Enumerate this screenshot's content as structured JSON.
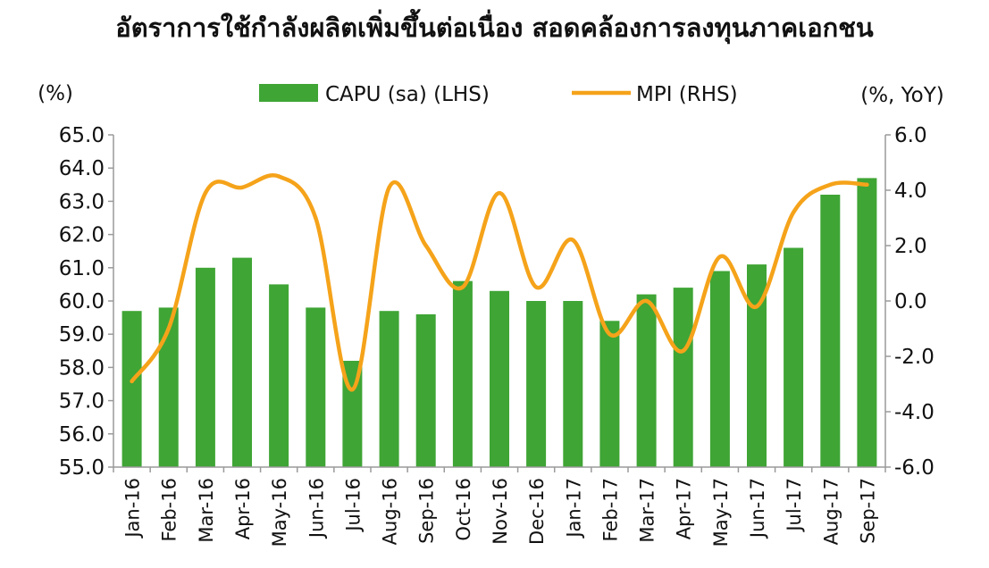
{
  "chart_data": {
    "type": "bar",
    "title": "อัตราการใช้กำลังผลิตเพิ่มขึ้นต่อเนื่อง สอดคล้องการลงทุนภาคเอกชน",
    "left_unit": "(%)",
    "right_unit": "(%, YoY)",
    "categories": [
      "Jan-16",
      "Feb-16",
      "Mar-16",
      "Apr-16",
      "May-16",
      "Jun-16",
      "Jul-16",
      "Aug-16",
      "Sep-16",
      "Oct-16",
      "Nov-16",
      "Dec-16",
      "Jan-17",
      "Feb-17",
      "Mar-17",
      "Apr-17",
      "May-17",
      "Jun-17",
      "Jul-17",
      "Aug-17",
      "Sep-17"
    ],
    "left_axis": {
      "min": 55.0,
      "max": 65.0,
      "ticks": [
        "55.0",
        "56.0",
        "57.0",
        "58.0",
        "59.0",
        "60.0",
        "61.0",
        "62.0",
        "63.0",
        "64.0",
        "65.0"
      ]
    },
    "right_axis": {
      "min": -6.0,
      "max": 6.0,
      "ticks": [
        "-6.0",
        "-4.0",
        "-2.0",
        "0.0",
        "2.0",
        "4.0",
        "6.0"
      ]
    },
    "legend_position": "top",
    "series": [
      {
        "name": "CAPU (sa) (LHS)",
        "type": "bar",
        "axis": "left",
        "color": "#3fa535",
        "values": [
          59.7,
          59.8,
          61.0,
          61.3,
          60.5,
          59.8,
          58.2,
          59.7,
          59.6,
          60.6,
          60.3,
          60.0,
          60.0,
          59.4,
          60.2,
          60.4,
          60.9,
          61.1,
          61.6,
          63.2,
          63.7
        ]
      },
      {
        "name": "MPI (RHS)",
        "type": "line",
        "axis": "right",
        "color": "#f5a31a",
        "values": [
          -2.9,
          -1.0,
          3.9,
          4.1,
          4.5,
          3.0,
          -3.2,
          4.1,
          2.0,
          0.5,
          3.9,
          0.5,
          2.2,
          -1.2,
          0.0,
          -1.8,
          1.6,
          -0.2,
          3.2,
          4.2,
          4.2
        ]
      }
    ]
  }
}
